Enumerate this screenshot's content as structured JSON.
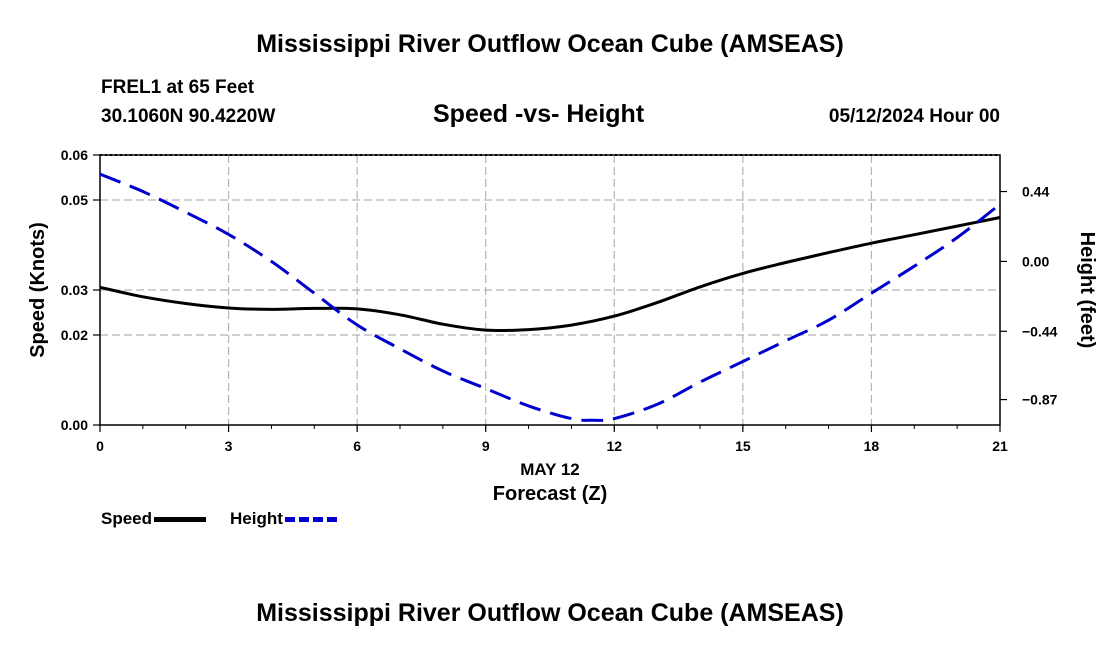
{
  "header": {
    "title": "Mississippi River Outflow Ocean Cube (AMSEAS)",
    "station": "FREL1 at 65 Feet",
    "coords": "30.1060N  90.4220W",
    "subtitle": "Speed -vs- Height",
    "datetime": "05/12/2024 Hour 00"
  },
  "footer": {
    "title": "Mississippi River Outflow Ocean Cube (AMSEAS)"
  },
  "legend": {
    "speed": "Speed",
    "height": "Height"
  },
  "colors": {
    "speed": "#000000",
    "height": "#0000cc",
    "grid": "#b4b4b4"
  },
  "chart_data": {
    "type": "line",
    "title": "Speed -vs- Height",
    "xlabel": "Forecast (Z)",
    "x_date_label": "MAY 12",
    "ylabel": "Speed (Knots)",
    "y2label": "Height (feet)",
    "xlim": [
      0,
      21
    ],
    "ylim": [
      0,
      0.06
    ],
    "y2lim": [
      -1.03,
      0.67
    ],
    "x_ticks": [
      0,
      3,
      6,
      9,
      12,
      15,
      18,
      21
    ],
    "x_tick_labels": [
      "0",
      "3",
      "6",
      "9",
      "12",
      "15",
      "18",
      "21"
    ],
    "y_ticks": [
      0,
      0.02,
      0.03,
      0.05,
      0.06
    ],
    "y_tick_labels": [
      "0.00",
      "0.02",
      "0.03",
      "0.05",
      "0.06"
    ],
    "y2_ticks": [
      0.44,
      0.0,
      -0.44,
      -0.87
    ],
    "y2_tick_labels": [
      "0.44",
      "0.00",
      "−0.44",
      "−0.87"
    ],
    "grid": true,
    "series": [
      {
        "name": "Speed",
        "axis": "left",
        "x": [
          0,
          1,
          2,
          3,
          4,
          5,
          6,
          7,
          8,
          9,
          10,
          11,
          12,
          13,
          14,
          15,
          16,
          17,
          18,
          19,
          20,
          21
        ],
        "values": [
          0.0306,
          0.0285,
          0.027,
          0.026,
          0.0257,
          0.0259,
          0.0258,
          0.0245,
          0.0224,
          0.0211,
          0.0212,
          0.0222,
          0.0242,
          0.0272,
          0.0307,
          0.0337,
          0.0361,
          0.0383,
          0.0404,
          0.0423,
          0.0442,
          0.0461
        ]
      },
      {
        "name": "Height",
        "axis": "right",
        "x": [
          0,
          1,
          2,
          3,
          4,
          5,
          6,
          7,
          8,
          9,
          10,
          11,
          11.5,
          12,
          13,
          14,
          15,
          16,
          17,
          18,
          19,
          20,
          21
        ],
        "values": [
          0.55,
          0.44,
          0.31,
          0.17,
          0.0,
          -0.2,
          -0.4,
          -0.55,
          -0.69,
          -0.8,
          -0.91,
          -0.99,
          -1.0,
          -0.99,
          -0.9,
          -0.76,
          -0.63,
          -0.5,
          -0.37,
          -0.2,
          -0.03,
          0.15,
          0.36
        ]
      }
    ]
  }
}
